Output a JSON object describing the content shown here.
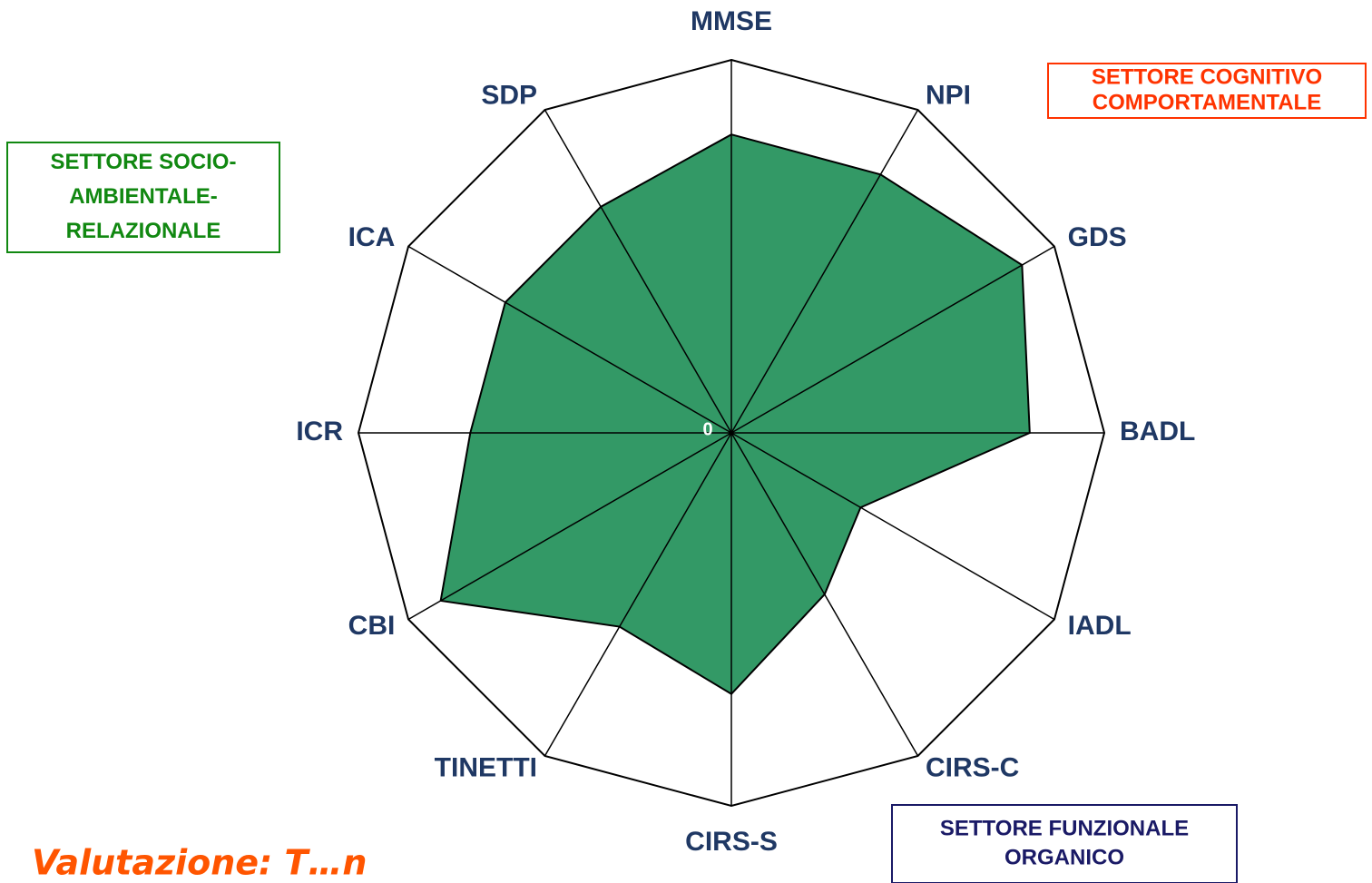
{
  "chart_data": {
    "type": "radar",
    "title": "Valutazione: T…n",
    "categories": [
      "MMSE",
      "NPI",
      "GDS",
      "BADL",
      "IADL",
      "CIRS-C",
      "CIRS-S",
      "TINETTI",
      "CBI",
      "ICR",
      "ICA",
      "SDP"
    ],
    "values": [
      80,
      80,
      90,
      80,
      40,
      50,
      70,
      60,
      90,
      70,
      70,
      70
    ],
    "color": "#339966",
    "ylim": [
      0,
      100
    ],
    "yticks": [
      0
    ],
    "annotations": [
      {
        "lines": [
          "SETTORE COGNITIVO",
          "COMPORTAMENTALE"
        ],
        "color": "#ff3300"
      },
      {
        "lines": [
          "SETTORE SOCIO-",
          "AMBIENTALE-",
          "RELAZIONALE"
        ],
        "color": "#118811"
      },
      {
        "lines": [
          "SETTORE FUNZIONALE",
          "ORGANICO"
        ],
        "color": "#1a1a66"
      }
    ]
  }
}
